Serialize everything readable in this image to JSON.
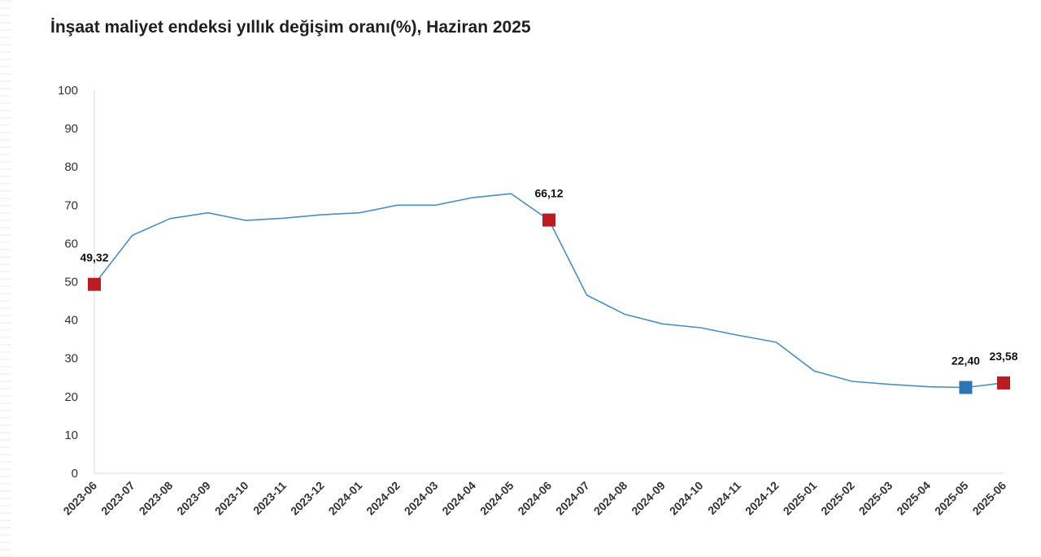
{
  "title": "İnşaat maliyet endeksi yıllık değişim oranı(%), Haziran 2025",
  "chart_data": {
    "type": "line",
    "title": "İnşaat maliyet endeksi yıllık değişim oranı(%), Haziran 2025",
    "xlabel": "",
    "ylabel": "",
    "ylim": [
      0,
      100
    ],
    "yticks": [
      0,
      10,
      20,
      30,
      40,
      50,
      60,
      70,
      80,
      90,
      100
    ],
    "grid": false,
    "legend": "none",
    "categories": [
      "2023-06",
      "2023-07",
      "2023-08",
      "2023-09",
      "2023-10",
      "2023-11",
      "2023-12",
      "2024-01",
      "2024-02",
      "2024-03",
      "2024-04",
      "2024-05",
      "2024-06",
      "2024-07",
      "2024-08",
      "2024-09",
      "2024-10",
      "2024-11",
      "2024-12",
      "2025-01",
      "2025-02",
      "2025-03",
      "2025-04",
      "2025-05",
      "2025-06"
    ],
    "series": [
      {
        "values": [
          49.32,
          62.1,
          66.5,
          68.0,
          66.0,
          66.6,
          67.5,
          68.0,
          70.0,
          70.0,
          72.0,
          73.0,
          66.12,
          46.5,
          41.5,
          39.0,
          38.0,
          36.0,
          34.2,
          26.7,
          24.0,
          23.2,
          22.6,
          22.4,
          23.58
        ],
        "color": "#4a8fc1"
      }
    ],
    "highlights": [
      {
        "index": 0,
        "label": "49,32",
        "color": "#b81d22"
      },
      {
        "index": 12,
        "label": "66,12",
        "color": "#b81d22"
      },
      {
        "index": 23,
        "label": "22,40",
        "color": "#2e75b6"
      },
      {
        "index": 24,
        "label": "23,58",
        "color": "#b81d22"
      }
    ]
  }
}
